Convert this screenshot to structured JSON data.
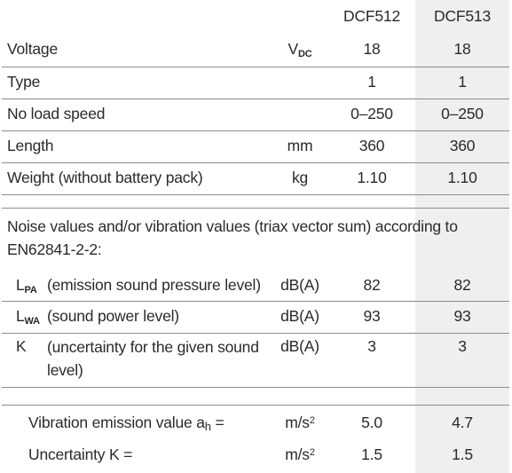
{
  "header": {
    "col1": "DCF512",
    "col2": "DCF513"
  },
  "specs": [
    {
      "label": "Voltage",
      "unit_main": "V",
      "unit_sub": "DC",
      "v1": "18",
      "v2": "18"
    },
    {
      "label": "Type",
      "unit_main": "",
      "unit_sub": "",
      "v1": "1",
      "v2": "1"
    },
    {
      "label": "No load speed",
      "unit_main": "",
      "unit_sub": "",
      "v1": "0–250",
      "v2": "0–250"
    },
    {
      "label": "Length",
      "unit_main": "mm",
      "unit_sub": "",
      "v1": "360",
      "v2": "360"
    },
    {
      "label": "Weight (without battery pack)",
      "unit_main": "kg",
      "unit_sub": "",
      "v1": "1.10",
      "v2": "1.10"
    }
  ],
  "noise_note": "Noise values and/or vibration values (triax vector sum) according to EN62841-2-2:",
  "noise": [
    {
      "sym_main": "L",
      "sym_sub": "PA",
      "desc": "(emission sound pressure level)",
      "unit": "dB(A)",
      "v1": "82",
      "v2": "82"
    },
    {
      "sym_main": "L",
      "sym_sub": "WA",
      "desc": "(sound power level)",
      "unit": "dB(A)",
      "v1": "93",
      "v2": "93"
    },
    {
      "sym_main": "K",
      "sym_sub": "",
      "desc": "(uncertainty for the given sound level)",
      "unit": "dB(A)",
      "v1": "3",
      "v2": "3"
    }
  ],
  "vibration": [
    {
      "label_main": "Vibration emission value a",
      "label_sub": "h",
      "label_tail": " =",
      "unit_main": "m/s",
      "unit_sup": "2",
      "v1": "5.0",
      "v2": "4.7"
    },
    {
      "label_main": "Uncertainty K =",
      "label_sub": "",
      "label_tail": "",
      "unit_main": "m/s",
      "unit_sup": "2",
      "v1": "1.5",
      "v2": "1.5"
    }
  ]
}
